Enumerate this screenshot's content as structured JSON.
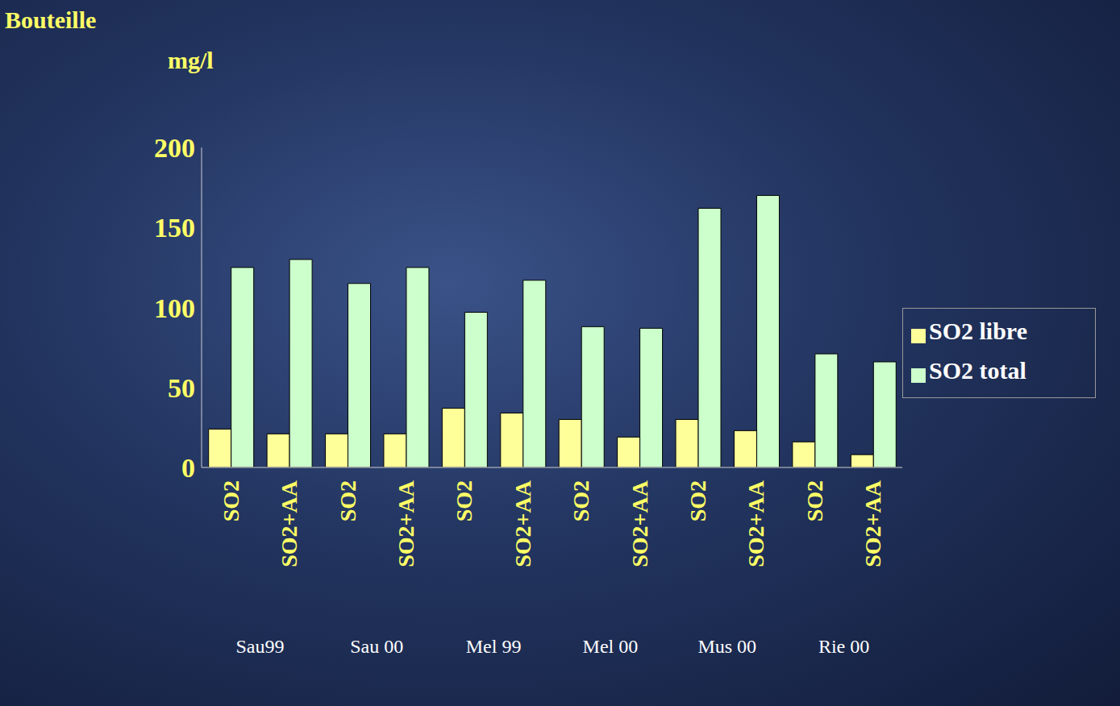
{
  "chart_data": {
    "type": "bar",
    "title": "Bouteille",
    "y_label": "mg/l",
    "categories": [
      "SO2",
      "SO2+AA",
      "SO2",
      "SO2+AA",
      "SO2",
      "SO2+AA",
      "SO2",
      "SO2+AA",
      "SO2",
      "SO2+AA",
      "SO2",
      "SO2+AA"
    ],
    "groups": [
      "Sau99",
      "Sau 00",
      "Mel 99",
      "Mel 00",
      "Mus 00",
      "Rie 00"
    ],
    "series": [
      {
        "name": "SO2 libre",
        "color": "#ffff99",
        "values": [
          24,
          21,
          21,
          21,
          37,
          34,
          30,
          19,
          30,
          23,
          16,
          8
        ]
      },
      {
        "name": "SO2 total",
        "color": "#ccffcc",
        "values": [
          125,
          130,
          115,
          125,
          97,
          117,
          88,
          87,
          162,
          170,
          71,
          66
        ]
      }
    ],
    "ylim": [
      0,
      200
    ],
    "yticks": [
      0,
      50,
      100,
      150,
      200
    ],
    "grid": false,
    "legend": "right"
  }
}
